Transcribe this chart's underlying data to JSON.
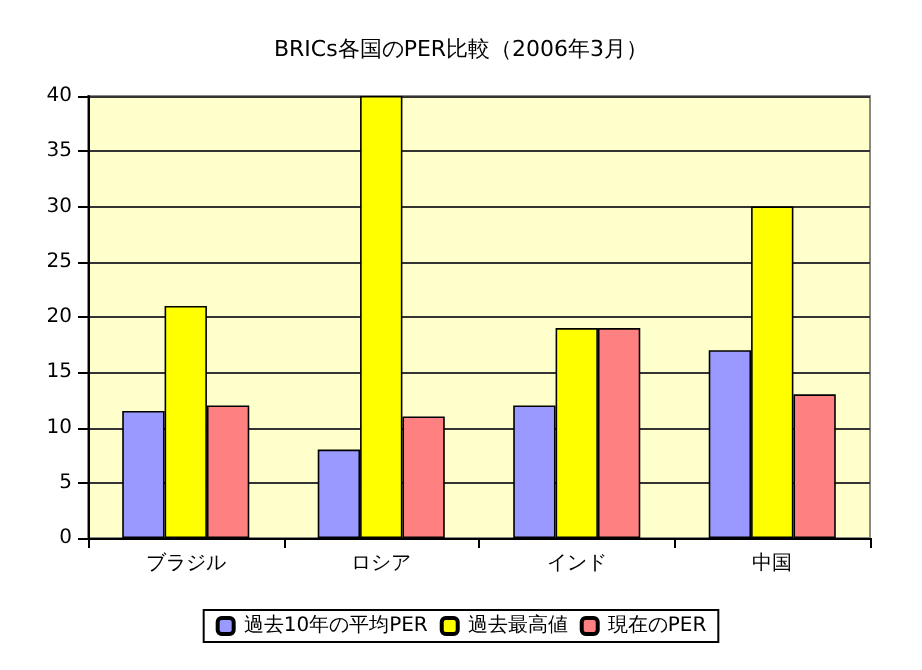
{
  "chart_data": {
    "type": "bar",
    "title": "BRICs各国のPER比較（2006年3月）",
    "categories": [
      "ブラジル",
      "ロシア",
      "インド",
      "中国"
    ],
    "series": [
      {
        "name": "過去10年の平均PER",
        "color": "#9999ff",
        "values": [
          11.5,
          8,
          12,
          17
        ]
      },
      {
        "name": "過去最高値",
        "color": "#ffff00",
        "values": [
          21,
          40,
          19,
          30
        ]
      },
      {
        "name": "現在のPER",
        "color": "#ff8080",
        "values": [
          12,
          11,
          19,
          13
        ]
      }
    ],
    "ylim": [
      0,
      40
    ],
    "yticks": [
      0,
      5,
      10,
      15,
      20,
      25,
      30,
      35,
      40
    ],
    "grid": "y",
    "legend": "bottom"
  }
}
